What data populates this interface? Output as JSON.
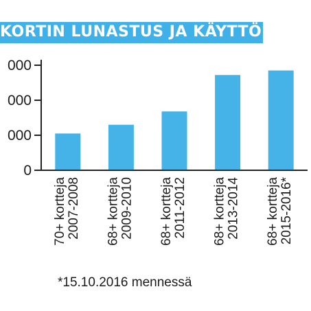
{
  "title": "KORTIN LUNASTUS JA KÄYTTÖ",
  "footnote": "*15.10.2016 mennessä",
  "colors": {
    "accent": "#3fb0e8",
    "bar": "#45b3e7",
    "axis": "#222222"
  },
  "chart_data": {
    "type": "bar",
    "title": "KORTIN LUNASTUS JA KÄYTTÖ",
    "categories": [
      [
        "70+ kortteja",
        "2007-2008"
      ],
      [
        "68+ kortteja",
        "2009-2010"
      ],
      [
        "68+ kortteja",
        "2011-2012"
      ],
      [
        "68+ kortteja",
        "2013-2014"
      ],
      [
        "68+ kortteja",
        "2015-2016*"
      ]
    ],
    "values": [
      1050,
      1300,
      1680,
      2720,
      2850
    ],
    "ylim": [
      0,
      3000
    ],
    "yticks": [
      0,
      1000,
      2000,
      3000
    ],
    "ytick_labels": [
      "0",
      "000",
      "000",
      "000"
    ],
    "grid": false
  }
}
